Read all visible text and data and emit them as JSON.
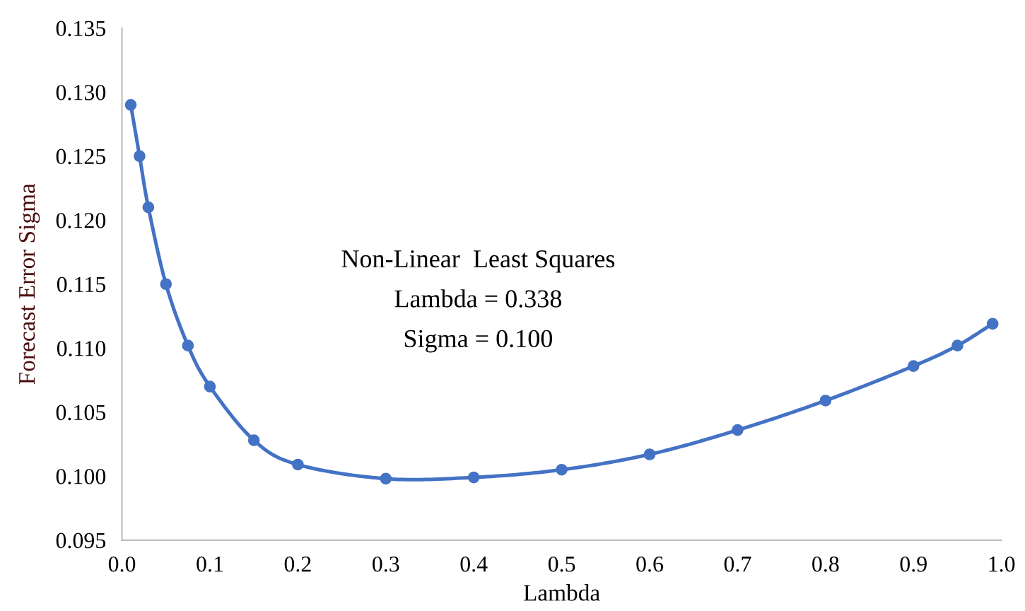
{
  "chart_data": {
    "type": "line",
    "xlabel": "Lambda",
    "ylabel": "Forecast Error Sigma",
    "x": [
      0.01,
      0.02,
      0.03,
      0.05,
      0.075,
      0.1,
      0.15,
      0.2,
      0.3,
      0.4,
      0.5,
      0.6,
      0.7,
      0.8,
      0.9,
      0.95,
      0.99
    ],
    "series": [
      {
        "color": "#4472c4",
        "values": [
          0.129,
          0.125,
          0.121,
          0.115,
          0.1102,
          0.107,
          0.1028,
          0.1009,
          0.0998,
          0.0999,
          0.1005,
          0.1017,
          0.1036,
          0.1059,
          0.1086,
          0.1102,
          0.1119
        ]
      }
    ],
    "xlim": [
      0.0,
      1.0
    ],
    "xticks": [
      {
        "value": 0,
        "label": "0.0"
      },
      0.1,
      0.2,
      0.3,
      0.4,
      0.5,
      0.6,
      0.7,
      0.8,
      0.9,
      {
        "value": 1,
        "label": "1.0"
      }
    ],
    "ylim": [
      0.095,
      0.135
    ],
    "yticks": [
      0.095,
      {
        "value": 0.1,
        "label": "0.100"
      },
      0.105,
      {
        "value": 0.11,
        "label": "0.110"
      },
      0.115,
      {
        "value": 0.12,
        "label": "0.120"
      },
      0.125,
      {
        "value": 0.13,
        "label": "0.130"
      },
      0.135
    ],
    "grid": false,
    "marker": "circle",
    "line_style": "solid",
    "annotations": [
      "Non-Linear  Least Squares",
      "Lambda = 0.338",
      "Sigma = 0.100"
    ]
  }
}
